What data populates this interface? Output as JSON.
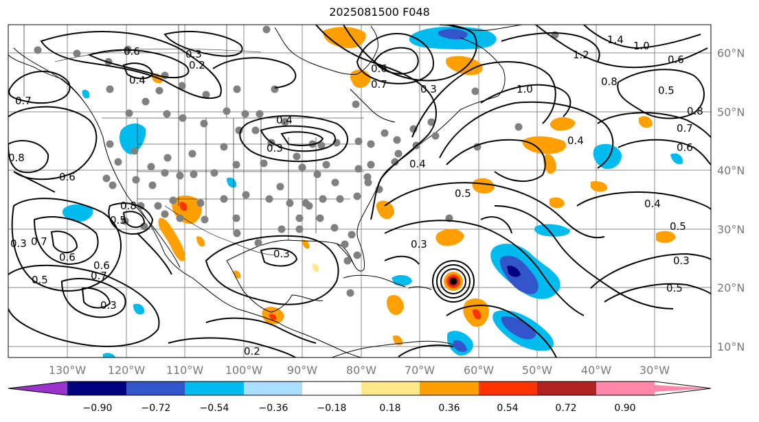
{
  "title": "2025081500 F048",
  "lon_labels": [
    "130°W",
    "120°W",
    "110°W",
    "100°W",
    "90°W",
    "80°W",
    "70°W",
    "60°W",
    "50°W",
    "40°W",
    "30°W"
  ],
  "lat_labels": [
    "60°N",
    "50°N",
    "40°N",
    "30°N",
    "20°N",
    "10°N"
  ],
  "colorbar": {
    "colors": [
      "#9933cc",
      "#000080",
      "#3355cc",
      "#00bbee",
      "#aaddff",
      "#ffffff",
      "#ffe888",
      "#ffa000",
      "#ff3300",
      "#b22222",
      "#ff88aa"
    ],
    "labels": [
      "−0.90",
      "−0.72",
      "−0.54",
      "−0.36",
      "−0.18",
      "0.18",
      "0.36",
      "0.54",
      "0.72",
      "0.90"
    ]
  },
  "contour_labels": [
    "0.7",
    "0.4",
    "0.2",
    "0.3",
    "0.6",
    "0.5",
    "0.7",
    "0.8",
    "1.0",
    "1.2",
    "1.4",
    "1.0",
    "0.6",
    "0.5",
    "0.8",
    "0.7",
    "0.6",
    "0.8",
    "0.4",
    "0.5",
    "0.4",
    "0.5",
    "0.3",
    "0.5",
    "0.3",
    "0.3",
    "0.3",
    "0.7",
    "0.6",
    "0.6",
    "0.5",
    "0.3",
    "0.2",
    "0.6",
    "0.8",
    "0.4",
    "0.3",
    "0.4",
    "0.7",
    "0.6",
    "0.3"
  ]
}
